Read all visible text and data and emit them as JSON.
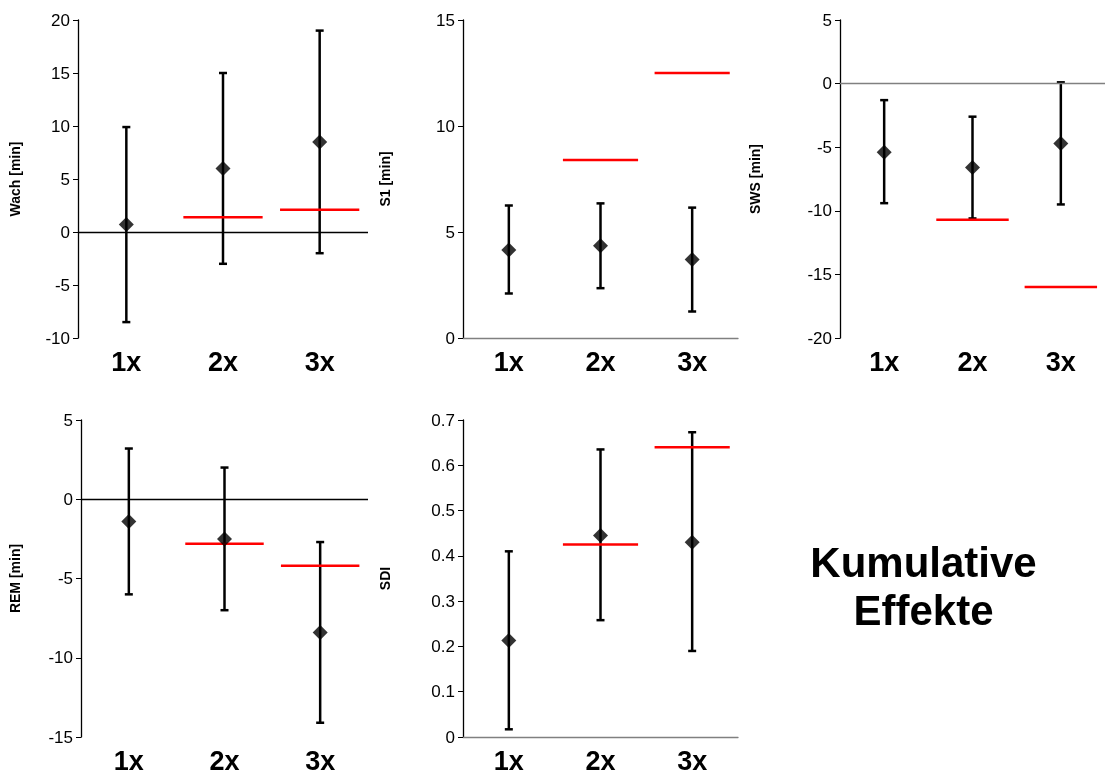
{
  "chart_data": [
    {
      "type": "scatter",
      "ylabel": "Wach [min]",
      "categories": [
        "1x",
        "2x",
        "3x"
      ],
      "ylim": [
        -10,
        20
      ],
      "yticks": [
        -10,
        -5,
        0,
        5,
        10,
        15,
        20
      ],
      "grid": false,
      "ref_lines": [
        {
          "axis": "y",
          "value": 0,
          "color": "#000000"
        }
      ],
      "series": [
        {
          "type": "scatter",
          "marker": "diamond",
          "color": "#000000",
          "values": [
            0.7,
            6.0,
            8.5
          ],
          "errors": [
            [
              -8.5,
              9.9
            ],
            [
              -3.0,
              15.0
            ],
            [
              -2.0,
              19.0
            ]
          ]
        },
        {
          "type": "bar",
          "color": "#ff0000",
          "base": [
            null,
            1.4,
            2.1
          ],
          "values": [
            null,
            0,
            0
          ]
        }
      ]
    },
    {
      "type": "scatter",
      "ylabel": "S1 [min]",
      "categories": [
        "1x",
        "2x",
        "3x"
      ],
      "ylim": [
        0,
        15
      ],
      "yticks": [
        0,
        5,
        10,
        15
      ],
      "grid": false,
      "series": [
        {
          "type": "scatter",
          "marker": "diamond",
          "color": "#000000",
          "values": [
            4.15,
            4.35,
            3.7
          ],
          "errors": [
            [
              2.1,
              6.25
            ],
            [
              2.35,
              6.35
            ],
            [
              1.25,
              6.15
            ]
          ]
        },
        {
          "type": "bar",
          "color": "#ff0000",
          "base": [
            null,
            8.4,
            12.5
          ],
          "values": [
            null,
            0,
            0
          ]
        }
      ]
    },
    {
      "type": "scatter",
      "ylabel": "SWS [min]",
      "categories": [
        "1x",
        "2x",
        "3x"
      ],
      "ylim": [
        -20,
        5
      ],
      "yticks": [
        -20,
        -15,
        -10,
        -5,
        0,
        5
      ],
      "grid": false,
      "ref_lines": [
        {
          "axis": "y",
          "value": 0,
          "color": "#808080"
        }
      ],
      "series": [
        {
          "type": "scatter",
          "marker": "diamond",
          "color": "#000000",
          "values": [
            -5.4,
            -6.6,
            -4.7
          ],
          "errors": [
            [
              -9.4,
              -1.3
            ],
            [
              -10.6,
              -2.6
            ],
            [
              -9.5,
              0.1
            ]
          ]
        },
        {
          "type": "bar",
          "color": "#ff0000",
          "base": [
            null,
            -10.7,
            -16.0
          ],
          "values": [
            null,
            0,
            0
          ]
        }
      ]
    },
    {
      "type": "scatter",
      "ylabel": "REM [min]",
      "categories": [
        "1x",
        "2x",
        "3x"
      ],
      "ylim": [
        -15,
        5
      ],
      "yticks": [
        -15,
        -10,
        -5,
        0,
        5
      ],
      "grid": false,
      "ref_lines": [
        {
          "axis": "y",
          "value": 0,
          "color": "#000000"
        }
      ],
      "series": [
        {
          "type": "scatter",
          "marker": "diamond",
          "color": "#000000",
          "values": [
            -1.4,
            -2.5,
            -8.4
          ],
          "errors": [
            [
              -6.0,
              3.2
            ],
            [
              -7.0,
              2.0
            ],
            [
              -14.1,
              -2.7
            ]
          ]
        },
        {
          "type": "bar",
          "color": "#ff0000",
          "base": [
            null,
            -2.8,
            -4.2
          ],
          "values": [
            null,
            0,
            0
          ]
        }
      ]
    },
    {
      "type": "scatter",
      "ylabel": "SDI",
      "categories": [
        "1x",
        "2x",
        "3x"
      ],
      "ylim": [
        0,
        0.7
      ],
      "yticks": [
        0,
        0.1,
        0.2,
        0.3,
        0.4,
        0.5,
        0.6,
        0.7
      ],
      "grid": false,
      "series": [
        {
          "type": "scatter",
          "marker": "diamond",
          "color": "#000000",
          "values": [
            0.213,
            0.445,
            0.43
          ],
          "errors": [
            [
              0.017,
              0.41
            ],
            [
              0.258,
              0.635
            ],
            [
              0.19,
              0.673
            ]
          ]
        },
        {
          "type": "bar",
          "color": "#ff0000",
          "base": [
            null,
            0.425,
            0.64
          ],
          "values": [
            null,
            0,
            0
          ]
        }
      ]
    },
    {
      "type": "other",
      "title": "Kumulative Effekte"
    }
  ]
}
